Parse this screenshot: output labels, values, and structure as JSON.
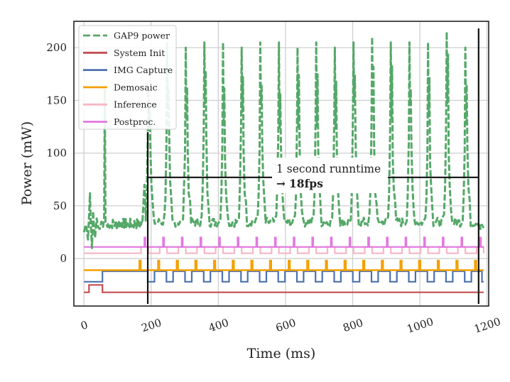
{
  "chart_data": {
    "type": "line",
    "title": "",
    "xlabel": "Time (ms)",
    "ylabel": "Power (mW)",
    "xlim": [
      -30,
      1205
    ],
    "ylim": [
      -45,
      225
    ],
    "grid": true,
    "xticks": [
      0,
      200,
      400,
      600,
      800,
      1000,
      1200
    ],
    "xtick_labels": [
      "0",
      "200",
      "400",
      "600",
      "800",
      "1000",
      "1200"
    ],
    "yticks": [
      0,
      50,
      100,
      150,
      200
    ],
    "ytick_labels": [
      "0",
      "50",
      "100",
      "150",
      "200"
    ],
    "legend_position": "top-left",
    "legend": [
      {
        "label": "GAP9 power",
        "color": "#55a868",
        "style": "dashed"
      },
      {
        "label": "System Init",
        "color": "#c44e52",
        "style": "solid"
      },
      {
        "label": "IMG Capture",
        "color": "#4c72b0",
        "style": "solid"
      },
      {
        "label": "Demosaic",
        "color": "#f5a000",
        "style": "solid"
      },
      {
        "label": "Inference",
        "color": "#f7b6c2",
        "style": "solid"
      },
      {
        "label": "Postproc.",
        "color": "#e377e0",
        "style": "solid"
      }
    ],
    "series": {
      "gap9_power": {
        "baseline_mW": 32,
        "frame_period_ms": 55.5,
        "first_frame_ms": 190,
        "peaks_mW": [
          160,
          205,
          200,
          205,
          205,
          200,
          205,
          205,
          200,
          205,
          200,
          205,
          210,
          205,
          205,
          205,
          215,
          200
        ],
        "startup_segments": [
          {
            "t": [
              0,
              5,
              8,
              12,
              15,
              18,
              20,
              24,
              27,
              30,
              33,
              38,
              42,
              47,
              52,
              57,
              60
            ],
            "p": [
              25,
              32,
              28,
              18,
              40,
              62,
              35,
              10,
              45,
              30,
              20,
              38,
              30,
              28,
              35,
              30,
              38
            ]
          }
        ]
      },
      "system_init": {
        "level": -32,
        "high": -25,
        "high_intervals": [
          [
            15,
            55
          ]
        ]
      },
      "img_capture": {
        "level": -22,
        "high": -12,
        "low_pulses_start_ms": 190,
        "pulse_period_ms": 55.5,
        "pulse_width_ms": 20,
        "pre_high_from_ms": 55
      },
      "demosaic": {
        "level": -11,
        "high": -2,
        "pulse_start_ms": 165,
        "pulse_period_ms": 55.5,
        "pulse_width_ms": 4
      },
      "inference": {
        "level": 5,
        "high": 11,
        "pulse_start_ms": 170,
        "pulse_period_ms": 55.5,
        "pulse_width_ms": 22
      },
      "postproc": {
        "level": 11,
        "high": 20,
        "pulse_start_ms": 180,
        "pulse_period_ms": 55.5,
        "pulse_width_ms": 3
      }
    },
    "annotation": {
      "line1": "1 second runntime",
      "line2_arrow": "→",
      "line2_text": "18fps",
      "vlines_ms": [
        190,
        1175
      ],
      "hline_mW": 77
    }
  }
}
